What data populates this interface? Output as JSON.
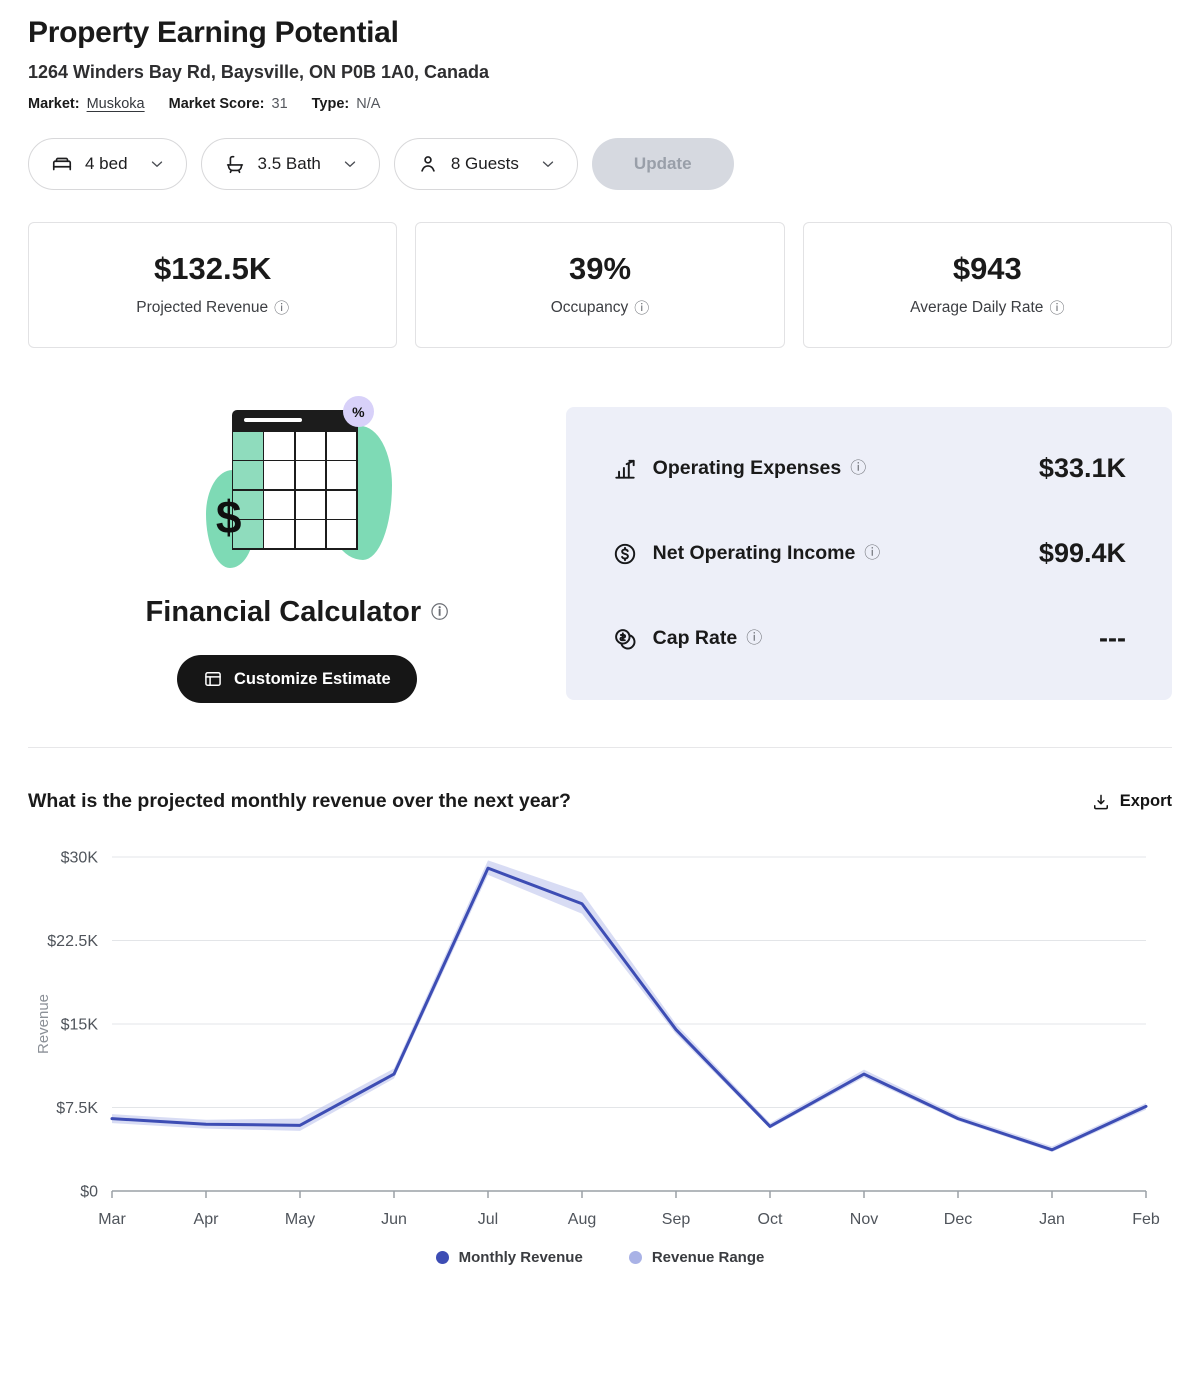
{
  "icons": {
    "info": "ⓘ",
    "percent": "%",
    "dollar": "$"
  },
  "page": {
    "title": "Property Earning Potential",
    "address": "1264 Winders Bay Rd, Baysville, ON P0B 1A0, Canada",
    "market_label": "Market:",
    "market_value": "Muskoka",
    "market_score_label": "Market Score:",
    "market_score_value": "31",
    "type_label": "Type:",
    "type_value": "N/A"
  },
  "filters": {
    "beds": "4 bed",
    "baths": "3.5 Bath",
    "guests": "8 Guests",
    "update_label": "Update"
  },
  "stats": [
    {
      "value": "$132.5K",
      "label": "Projected Revenue"
    },
    {
      "value": "39%",
      "label": "Occupancy"
    },
    {
      "value": "$943",
      "label": "Average Daily Rate"
    }
  ],
  "calculator": {
    "title": "Financial Calculator",
    "customize_label": "Customize Estimate",
    "rows": [
      {
        "label": "Operating Expenses",
        "value": "$33.1K"
      },
      {
        "label": "Net Operating Income",
        "value": "$99.4K"
      },
      {
        "label": "Cap Rate",
        "value": "---"
      }
    ]
  },
  "chart_section": {
    "question": "What is the projected monthly revenue over the next year?",
    "export_label": "Export",
    "legend": [
      {
        "label": "Monthly Revenue",
        "color": "#3d4db4"
      },
      {
        "label": "Revenue Range",
        "color": "#a9b2e6"
      }
    ]
  },
  "chart_data": {
    "type": "line",
    "x": [
      "Mar",
      "Apr",
      "May",
      "Jun",
      "Jul",
      "Aug",
      "Sep",
      "Oct",
      "Nov",
      "Dec",
      "Jan",
      "Feb"
    ],
    "series": [
      {
        "name": "Monthly Revenue",
        "values": [
          6500,
          6000,
          5900,
          10500,
          29000,
          25800,
          14500,
          5800,
          10500,
          6500,
          3700,
          7600
        ]
      },
      {
        "name": "Revenue Range Low",
        "values": [
          6100,
          5600,
          5400,
          10100,
          28400,
          24900,
          14100,
          5600,
          10200,
          6300,
          3500,
          7300
        ]
      },
      {
        "name": "Revenue Range High",
        "values": [
          6900,
          6400,
          6500,
          11000,
          29700,
          26800,
          15000,
          6100,
          10900,
          6800,
          4000,
          7900
        ]
      }
    ],
    "title": "",
    "xlabel": "",
    "ylabel": "Revenue",
    "ylim": [
      0,
      30000
    ],
    "yticks": [
      "$0",
      "$7.5K",
      "$15K",
      "$22.5K",
      "$30K"
    ],
    "grid": true,
    "legend_position": "bottom"
  }
}
